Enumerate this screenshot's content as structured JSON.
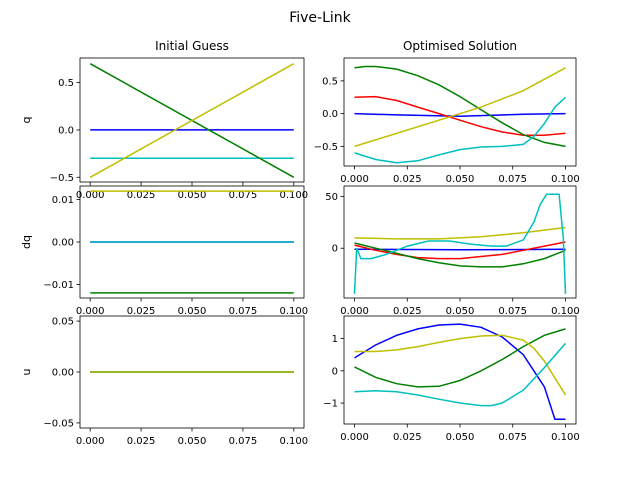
{
  "figure": {
    "title": "Five-Link"
  },
  "chart_data": [
    {
      "type": "line",
      "title": "Initial Guess",
      "ylabel": "q",
      "xlim": [
        -0.005,
        0.105
      ],
      "ylim": [
        -0.55,
        0.76
      ],
      "xticks": [
        "0.000",
        "0.025",
        "0.050",
        "0.075",
        "0.100"
      ],
      "xtick_values": [
        0,
        0.025,
        0.05,
        0.075,
        0.1
      ],
      "yticks": [
        "−0.5",
        "0.0",
        "0.5"
      ],
      "ytick_values": [
        -0.5,
        0,
        0.5
      ],
      "series": [
        {
          "color": "#0000ff",
          "x": [
            0,
            0.1
          ],
          "y": [
            0,
            0
          ]
        },
        {
          "color": "#00bfbf",
          "x": [
            0,
            0.1
          ],
          "y": [
            -0.3,
            -0.3
          ]
        },
        {
          "color": "#008000",
          "x": [
            0,
            0.1
          ],
          "y": [
            0.7,
            -0.5
          ]
        },
        {
          "color": "#bfbf00",
          "x": [
            0,
            0.1
          ],
          "y": [
            -0.5,
            0.7
          ]
        }
      ]
    },
    {
      "type": "line",
      "title": "Optimised Solution",
      "ylabel": "",
      "xlim": [
        -0.005,
        0.105
      ],
      "ylim": [
        -0.8,
        0.85
      ],
      "xticks": [
        "0.000",
        "0.025",
        "0.050",
        "0.075",
        "0.100"
      ],
      "xtick_values": [
        0,
        0.025,
        0.05,
        0.075,
        0.1
      ],
      "yticks": [
        "−0.5",
        "0.0",
        "0.5"
      ],
      "ytick_values": [
        -0.5,
        0,
        0.5
      ],
      "series": [
        {
          "color": "#0000ff",
          "x": [
            0,
            0.02,
            0.05,
            0.08,
            0.1
          ],
          "y": [
            0,
            -0.02,
            -0.04,
            -0.01,
            0
          ]
        },
        {
          "color": "#ff0000",
          "x": [
            0,
            0.01,
            0.02,
            0.03,
            0.04,
            0.05,
            0.06,
            0.07,
            0.08,
            0.09,
            0.1
          ],
          "y": [
            0.25,
            0.26,
            0.2,
            0.1,
            0,
            -0.1,
            -0.2,
            -0.28,
            -0.33,
            -0.33,
            -0.3
          ]
        },
        {
          "color": "#008000",
          "x": [
            0,
            0.005,
            0.01,
            0.02,
            0.03,
            0.04,
            0.05,
            0.06,
            0.07,
            0.08,
            0.09,
            0.1
          ],
          "y": [
            0.7,
            0.72,
            0.72,
            0.68,
            0.58,
            0.44,
            0.26,
            0.06,
            -0.14,
            -0.32,
            -0.44,
            -0.5
          ]
        },
        {
          "color": "#bfbf00",
          "x": [
            0,
            0.02,
            0.04,
            0.06,
            0.08,
            0.1
          ],
          "y": [
            -0.5,
            -0.3,
            -0.1,
            0.1,
            0.35,
            0.7
          ]
        },
        {
          "color": "#00bfbf",
          "x": [
            0,
            0.01,
            0.02,
            0.03,
            0.04,
            0.05,
            0.06,
            0.07,
            0.08,
            0.085,
            0.09,
            0.095,
            0.1
          ],
          "y": [
            -0.6,
            -0.7,
            -0.75,
            -0.72,
            -0.63,
            -0.55,
            -0.51,
            -0.5,
            -0.47,
            -0.35,
            -0.15,
            0.1,
            0.25
          ]
        }
      ]
    },
    {
      "type": "line",
      "title": "",
      "ylabel": "dq",
      "xlim": [
        -0.005,
        0.105
      ],
      "ylim": [
        -0.0132,
        0.0132
      ],
      "xticks": [
        "0.000",
        "0.025",
        "0.050",
        "0.075",
        "0.100"
      ],
      "xtick_values": [
        0,
        0.025,
        0.05,
        0.075,
        0.1
      ],
      "yticks": [
        "−0.01",
        "0.00",
        "0.01"
      ],
      "ytick_values": [
        -0.01,
        0,
        0.01
      ],
      "series": [
        {
          "color": "#0000ff",
          "x": [
            0,
            0.1
          ],
          "y": [
            0,
            0
          ]
        },
        {
          "color": "#00bfbf",
          "x": [
            0,
            0.1
          ],
          "y": [
            0,
            0
          ]
        },
        {
          "color": "#008000",
          "x": [
            0,
            0.1
          ],
          "y": [
            -0.012,
            -0.012
          ]
        },
        {
          "color": "#bfbf00",
          "x": [
            0,
            0.1
          ],
          "y": [
            0.012,
            0.012
          ]
        }
      ]
    },
    {
      "type": "line",
      "title": "",
      "ylabel": "",
      "xlim": [
        -0.005,
        0.105
      ],
      "ylim": [
        -48,
        60
      ],
      "xticks": [
        "0.000",
        "0.025",
        "0.050",
        "0.075",
        "0.100"
      ],
      "xtick_values": [
        0,
        0.025,
        0.05,
        0.075,
        0.1
      ],
      "yticks": [
        "0",
        "50"
      ],
      "ytick_values": [
        0,
        50
      ],
      "series": [
        {
          "color": "#0000ff",
          "x": [
            0,
            0.05,
            0.1
          ],
          "y": [
            -1,
            -1.5,
            -1
          ]
        },
        {
          "color": "#ff0000",
          "x": [
            0,
            0.01,
            0.02,
            0.03,
            0.04,
            0.05,
            0.06,
            0.07,
            0.08,
            0.09,
            0.1
          ],
          "y": [
            3,
            -2,
            -6,
            -9,
            -10,
            -10,
            -8,
            -6,
            -2,
            2,
            6
          ]
        },
        {
          "color": "#008000",
          "x": [
            0,
            0.01,
            0.02,
            0.03,
            0.04,
            0.05,
            0.06,
            0.07,
            0.08,
            0.09,
            0.1
          ],
          "y": [
            5,
            0,
            -5,
            -10,
            -14,
            -17,
            -18,
            -18,
            -15,
            -10,
            -2
          ]
        },
        {
          "color": "#bfbf00",
          "x": [
            0,
            0.02,
            0.04,
            0.06,
            0.08,
            0.1
          ],
          "y": [
            10,
            9,
            9,
            11,
            15,
            20
          ]
        },
        {
          "color": "#00bfbf",
          "x": [
            0,
            0.001,
            0.003,
            0.008,
            0.015,
            0.025,
            0.035,
            0.045,
            0.055,
            0.065,
            0.072,
            0.08,
            0.085,
            0.088,
            0.091,
            0.094,
            0.097,
            0.099,
            0.1
          ],
          "y": [
            -44,
            0,
            -10,
            -10,
            -6,
            2,
            7,
            7,
            4,
            2,
            2,
            8,
            25,
            42,
            52,
            52,
            52,
            10,
            -44
          ]
        }
      ]
    },
    {
      "type": "line",
      "title": "",
      "ylabel": "u",
      "xlim": [
        -0.005,
        0.105
      ],
      "ylim": [
        -0.055,
        0.055
      ],
      "xticks": [
        "0.000",
        "0.025",
        "0.050",
        "0.075",
        "0.100"
      ],
      "xtick_values": [
        0,
        0.025,
        0.05,
        0.075,
        0.1
      ],
      "yticks": [
        "−0.05",
        "0.00",
        "0.05"
      ],
      "ytick_values": [
        -0.05,
        0,
        0.05
      ],
      "series": [
        {
          "color": "#0000ff",
          "x": [
            0,
            0.1
          ],
          "y": [
            0,
            0
          ]
        },
        {
          "color": "#008000",
          "x": [
            0,
            0.1
          ],
          "y": [
            0,
            0
          ]
        },
        {
          "color": "#00bfbf",
          "x": [
            0,
            0.1
          ],
          "y": [
            0,
            0
          ]
        },
        {
          "color": "#bfbf00",
          "x": [
            0,
            0.1
          ],
          "y": [
            0,
            0
          ]
        }
      ]
    },
    {
      "type": "line",
      "title": "",
      "ylabel": "",
      "xlim": [
        -0.005,
        0.105
      ],
      "ylim": [
        -1.65,
        1.7
      ],
      "xticks": [
        "0.000",
        "0.025",
        "0.050",
        "0.075",
        "0.100"
      ],
      "xtick_values": [
        0,
        0.025,
        0.05,
        0.075,
        0.1
      ],
      "yticks": [
        "−1",
        "0",
        "1"
      ],
      "ytick_values": [
        -1,
        0,
        1
      ],
      "series": [
        {
          "color": "#0000ff",
          "x": [
            0,
            0.01,
            0.02,
            0.03,
            0.04,
            0.05,
            0.06,
            0.07,
            0.08,
            0.09,
            0.095,
            0.1
          ],
          "y": [
            0.4,
            0.8,
            1.1,
            1.3,
            1.42,
            1.45,
            1.35,
            1.05,
            0.5,
            -0.5,
            -1.5,
            -1.5
          ]
        },
        {
          "color": "#008000",
          "x": [
            0,
            0.01,
            0.02,
            0.03,
            0.04,
            0.05,
            0.06,
            0.07,
            0.08,
            0.09,
            0.1
          ],
          "y": [
            0.12,
            -0.2,
            -0.4,
            -0.5,
            -0.48,
            -0.3,
            0,
            0.35,
            0.75,
            1.1,
            1.3
          ]
        },
        {
          "color": "#bfbf00",
          "x": [
            0,
            0.01,
            0.02,
            0.03,
            0.04,
            0.05,
            0.06,
            0.07,
            0.08,
            0.085,
            0.09,
            0.1
          ],
          "y": [
            0.6,
            0.6,
            0.65,
            0.75,
            0.88,
            1.0,
            1.08,
            1.1,
            0.95,
            0.7,
            0.3,
            -0.75
          ]
        },
        {
          "color": "#00bfbf",
          "x": [
            0,
            0.01,
            0.02,
            0.03,
            0.04,
            0.05,
            0.06,
            0.065,
            0.07,
            0.08,
            0.09,
            0.1
          ],
          "y": [
            -0.65,
            -0.62,
            -0.65,
            -0.75,
            -0.88,
            -1.0,
            -1.08,
            -1.08,
            -1.0,
            -0.6,
            0.1,
            0.85
          ]
        }
      ]
    }
  ]
}
